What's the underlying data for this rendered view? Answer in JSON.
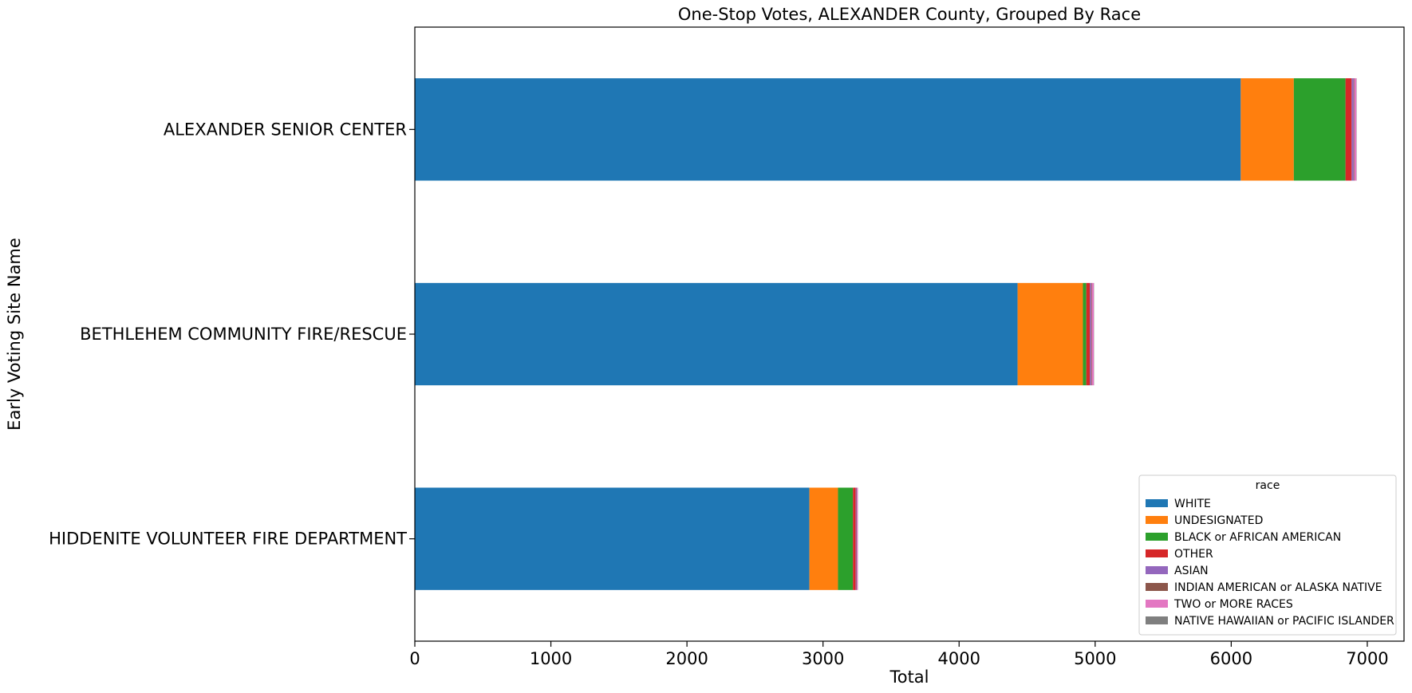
{
  "chart_data": {
    "type": "bar",
    "orientation": "horizontal",
    "stacked": true,
    "title": "One-Stop Votes, ALEXANDER County, Grouped By Race",
    "xlabel": "Total",
    "ylabel": "Early Voting Site Name",
    "xlim": [
      0,
      7270
    ],
    "xticks": [
      0,
      1000,
      2000,
      3000,
      4000,
      5000,
      6000,
      7000
    ],
    "categories": [
      "ALEXANDER SENIOR CENTER",
      "BETHLEHEM COMMUNITY FIRE/RESCUE",
      "HIDDENITE VOLUNTEER FIRE DEPARTMENT"
    ],
    "legend_title": "race",
    "legend_position": "lower right",
    "grid": false,
    "series": [
      {
        "name": "WHITE",
        "color": "#1f77b4",
        "values": [
          6070,
          4430,
          2900
        ]
      },
      {
        "name": "UNDESIGNATED",
        "color": "#ff7f0e",
        "values": [
          390,
          480,
          210
        ]
      },
      {
        "name": "BLACK or AFRICAN AMERICAN",
        "color": "#2ca02c",
        "values": [
          380,
          25,
          110
        ]
      },
      {
        "name": "OTHER",
        "color": "#d62728",
        "values": [
          45,
          25,
          20
        ]
      },
      {
        "name": "ASIAN",
        "color": "#9467bd",
        "values": [
          15,
          10,
          5
        ]
      },
      {
        "name": "INDIAN AMERICAN or ALASKA NATIVE",
        "color": "#8c564b",
        "values": [
          5,
          5,
          3
        ]
      },
      {
        "name": "TWO or MORE RACES",
        "color": "#e377c2",
        "values": [
          15,
          15,
          8
        ]
      },
      {
        "name": "NATIVE HAWAIIAN or PACIFIC ISLANDER",
        "color": "#7f7f7f",
        "values": [
          2,
          2,
          1
        ]
      }
    ]
  }
}
